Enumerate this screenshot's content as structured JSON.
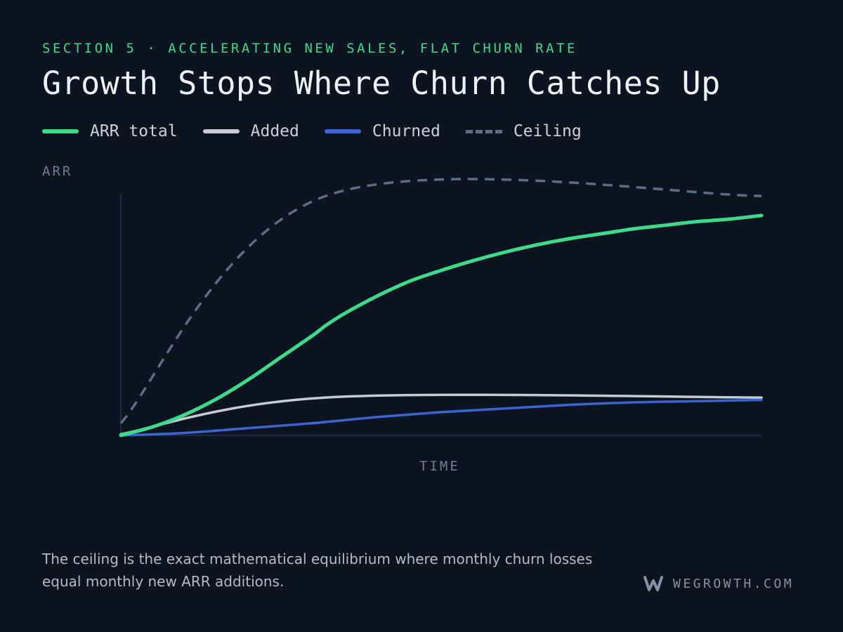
{
  "header": {
    "kicker": "SECTION 5 · ACCELERATING NEW SALES, FLAT CHURN RATE",
    "title": "Growth Stops Where Churn Catches Up"
  },
  "legend": [
    {
      "label": "ARR total",
      "color": "#3fd98a",
      "style": "solid"
    },
    {
      "label": "Added",
      "color": "#c8ccd2",
      "style": "solid"
    },
    {
      "label": "Churned",
      "color": "#3b66d0",
      "style": "solid"
    },
    {
      "label": "Ceiling",
      "color": "#5e6e80",
      "style": "dashed"
    }
  ],
  "chart_data": {
    "type": "line",
    "title": "Growth Stops Where Churn Catches Up",
    "xlabel": "TIME",
    "ylabel": "ARR",
    "xlim": [
      0,
      10
    ],
    "ylim": [
      0,
      100
    ],
    "grid": false,
    "legend_position": "top-left",
    "series": [
      {
        "name": "ARR total",
        "color": "#3fd98a",
        "x": [
          0,
          0.5,
          1,
          1.5,
          2,
          2.5,
          3,
          3.2,
          3.5,
          4,
          4.5,
          5,
          5.5,
          6,
          6.5,
          7,
          7.5,
          8,
          8.5,
          9,
          9.5,
          10
        ],
        "y": [
          0,
          3.5,
          8.5,
          15,
          23,
          32,
          41,
          45,
          50,
          57,
          63,
          67.5,
          71.5,
          75,
          78,
          80.5,
          82.5,
          84.5,
          86,
          87.5,
          88.5,
          90
        ]
      },
      {
        "name": "Added",
        "color": "#c8ccd2",
        "x": [
          0,
          3.2,
          10
        ],
        "y": [
          0.5,
          15.5,
          15.5
        ]
      },
      {
        "name": "Churned",
        "color": "#3b66d0",
        "x": [
          0,
          1,
          2,
          3,
          4,
          5,
          6,
          7,
          8,
          9,
          10
        ],
        "y": [
          0,
          1,
          3,
          5,
          7.5,
          9.5,
          11,
          12.5,
          13.5,
          14,
          14.5
        ]
      },
      {
        "name": "Ceiling",
        "color": "#5e6e80",
        "style": "dashed",
        "x": [
          0,
          3.2,
          10
        ],
        "y": [
          5,
          98,
          98
        ]
      }
    ]
  },
  "caption": "The ceiling is the exact mathematical equilibrium where monthly churn losses equal monthly new ARR additions.",
  "brand": {
    "text": "WEGROWTH.COM",
    "mark_icon": "w-logo-icon"
  }
}
